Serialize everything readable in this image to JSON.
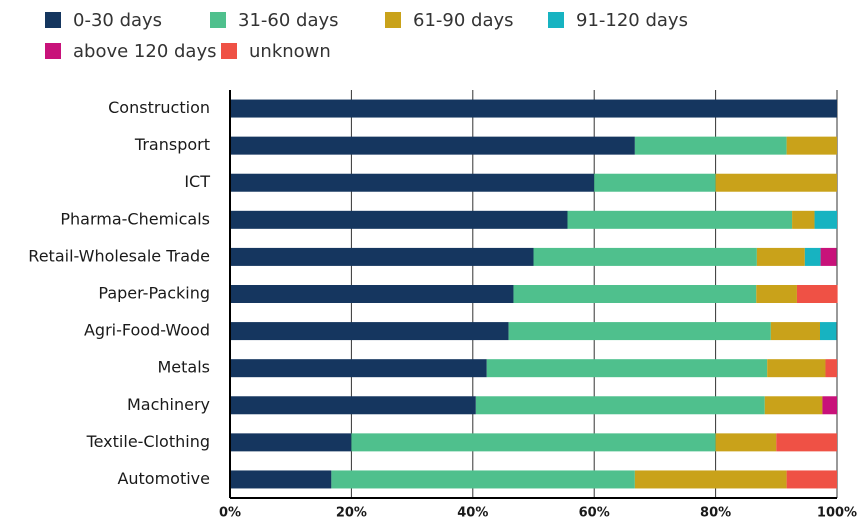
{
  "chart_data": {
    "type": "stacked_barh",
    "categories": [
      "Construction",
      "Transport",
      "ICT",
      "Pharma-Chemicals",
      "Retail-Wholesale Trade",
      "Paper-Packing",
      "Agri-Food-Wood",
      "Metals",
      "Machinery",
      "Textile-Clothing",
      "Automotive"
    ],
    "series": [
      {
        "name": "0-30 days",
        "color": "#15365f",
        "values": [
          100,
          66.7,
          60,
          55.6,
          50,
          46.7,
          45.9,
          42.3,
          40.5,
          20,
          16.7
        ]
      },
      {
        "name": "31-60 days",
        "color": "#4fc08d",
        "values": [
          0,
          25,
          20,
          37,
          36.8,
          40,
          43.2,
          46.2,
          47.6,
          60,
          50
        ]
      },
      {
        "name": "61-90 days",
        "color": "#c9a21a",
        "values": [
          0,
          8.3,
          20,
          3.7,
          7.9,
          6.7,
          8.1,
          9.6,
          9.5,
          10,
          25
        ]
      },
      {
        "name": "91-120 days",
        "color": "#17b3c1",
        "values": [
          0,
          0,
          0,
          3.7,
          2.6,
          0,
          2.7,
          0,
          0,
          0,
          0
        ]
      },
      {
        "name": "above 120 days",
        "color": "#c8127a",
        "values": [
          0,
          0,
          0,
          0,
          2.6,
          0,
          0,
          0,
          2.4,
          0,
          0
        ]
      },
      {
        "name": "unknown",
        "color": "#ef5145",
        "values": [
          0,
          0,
          0,
          0,
          0,
          6.7,
          0,
          1.9,
          0,
          10,
          8.3
        ]
      }
    ],
    "xlim": [
      0,
      100
    ],
    "xticks": [
      {
        "value": 0,
        "label": "0%"
      },
      {
        "value": 20,
        "label": "20%"
      },
      {
        "value": 40,
        "label": "40%"
      },
      {
        "value": 60,
        "label": "60%"
      },
      {
        "value": 80,
        "label": "80%"
      },
      {
        "value": 100,
        "label": "100%"
      }
    ],
    "grid": true
  }
}
